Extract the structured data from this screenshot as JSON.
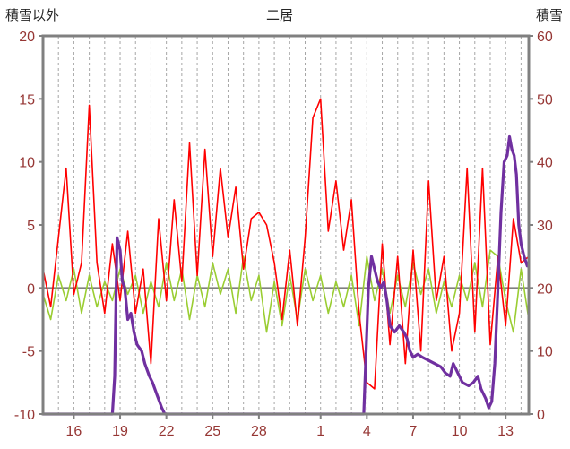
{
  "chart_data": {
    "type": "line",
    "title": "二居",
    "left_axis": {
      "title": "積雪以外",
      "min": -10,
      "max": 20,
      "tick_step": 5,
      "ticks": [
        20,
        15,
        10,
        5,
        0,
        -5,
        -10
      ]
    },
    "right_axis": {
      "title": "積雪",
      "min": 0,
      "max": 60,
      "tick_step": 10,
      "ticks": [
        60,
        50,
        40,
        30,
        20,
        10,
        0
      ]
    },
    "x_axis": {
      "min": 0,
      "max": 31.5,
      "gridline_step": 1,
      "tick_labels": [
        {
          "x": 2,
          "label": "16"
        },
        {
          "x": 5,
          "label": "19"
        },
        {
          "x": 8,
          "label": "22"
        },
        {
          "x": 11,
          "label": "25"
        },
        {
          "x": 14,
          "label": "28"
        },
        {
          "x": 18,
          "label": "1"
        },
        {
          "x": 21,
          "label": "4"
        },
        {
          "x": 24,
          "label": "7"
        },
        {
          "x": 27,
          "label": "10"
        },
        {
          "x": 30,
          "label": "13"
        }
      ]
    },
    "colors": {
      "tick_labels": "#963634",
      "grid": "#A6A6A6",
      "border": "#808080",
      "zero_line": "#808080"
    },
    "series": [
      {
        "id": "green",
        "axis": "left",
        "color": "#9ACD32",
        "width": 1.6,
        "x_start": 0,
        "x_step": 0.5,
        "values": [
          -0.5,
          -2.5,
          1,
          -1,
          1.5,
          -2,
          1,
          -1.5,
          0.5,
          -1,
          1.5,
          -0.5,
          1,
          -2,
          0.5,
          -1.5,
          2,
          -1,
          1.5,
          -2.5,
          1,
          -1.5,
          2,
          -0.5,
          1.5,
          -2,
          2.5,
          -1,
          1,
          -3.5,
          0.5,
          -3,
          1,
          -2.5,
          1.5,
          -1,
          1,
          -2,
          0.5,
          -1.5,
          1,
          -3,
          2.5,
          -1,
          1.5,
          -2,
          1,
          -1.5,
          2,
          -0.5,
          1.5,
          -2,
          0.5,
          -1.5,
          1,
          -1,
          2,
          -1.5,
          3,
          2.5,
          -1,
          -3.5,
          1.5,
          -2.5
        ]
      },
      {
        "id": "red",
        "axis": "left",
        "color": "#FF0000",
        "width": 1.6,
        "x_start": 0,
        "x_step": 0.5,
        "values": [
          1.5,
          -1.5,
          4,
          9.5,
          -0.5,
          2,
          14.5,
          2,
          -2,
          3.5,
          -1,
          4.5,
          -2,
          1.5,
          -6,
          5.5,
          -1,
          7,
          0.5,
          11.5,
          1,
          11,
          2.5,
          9.5,
          4,
          8,
          1.5,
          5.5,
          6,
          5,
          2,
          -2.5,
          3,
          -3,
          4,
          13.5,
          15,
          4.5,
          8.5,
          3,
          7,
          -2,
          -7.5,
          -8,
          3.5,
          -4.5,
          2.5,
          -6,
          3,
          -5,
          8.5,
          -1,
          2.5,
          -5,
          -2,
          9.5,
          -3.5,
          9.5,
          -4.5,
          2.5,
          -3,
          5.5,
          2,
          2.5
        ]
      },
      {
        "id": "purple",
        "axis": "right",
        "color": "#7030A0",
        "width": 3.2,
        "points": [
          [
            0,
            0
          ],
          [
            4.5,
            0
          ],
          [
            4.65,
            6
          ],
          [
            4.8,
            28
          ],
          [
            5.0,
            26
          ],
          [
            5.15,
            21
          ],
          [
            5.3,
            20
          ],
          [
            5.5,
            15
          ],
          [
            5.7,
            16
          ],
          [
            5.9,
            13
          ],
          [
            6.1,
            11
          ],
          [
            6.4,
            10
          ],
          [
            6.6,
            8
          ],
          [
            6.9,
            6
          ],
          [
            7.1,
            5
          ],
          [
            7.4,
            3
          ],
          [
            7.7,
            1
          ],
          [
            7.9,
            0
          ],
          [
            20.8,
            0
          ],
          [
            20.95,
            10
          ],
          [
            21.1,
            20
          ],
          [
            21.3,
            25
          ],
          [
            21.5,
            23
          ],
          [
            21.7,
            21
          ],
          [
            21.9,
            20
          ],
          [
            22.1,
            21
          ],
          [
            22.3,
            18
          ],
          [
            22.5,
            14
          ],
          [
            22.8,
            13
          ],
          [
            23.1,
            14
          ],
          [
            23.4,
            13
          ],
          [
            23.6,
            12
          ],
          [
            23.8,
            10
          ],
          [
            24.0,
            9
          ],
          [
            24.3,
            9.5
          ],
          [
            24.6,
            9
          ],
          [
            25.0,
            8.5
          ],
          [
            25.4,
            8
          ],
          [
            25.8,
            7.5
          ],
          [
            26.1,
            6.5
          ],
          [
            26.4,
            6
          ],
          [
            26.6,
            8
          ],
          [
            26.9,
            6.5
          ],
          [
            27.2,
            5
          ],
          [
            27.6,
            4.5
          ],
          [
            27.9,
            5
          ],
          [
            28.2,
            6
          ],
          [
            28.4,
            4
          ],
          [
            28.7,
            2.5
          ],
          [
            28.9,
            1
          ],
          [
            29.1,
            2
          ],
          [
            29.3,
            8
          ],
          [
            29.5,
            20
          ],
          [
            29.7,
            32
          ],
          [
            29.9,
            40
          ],
          [
            30.1,
            41
          ],
          [
            30.25,
            44
          ],
          [
            30.4,
            42
          ],
          [
            30.55,
            41
          ],
          [
            30.7,
            38
          ],
          [
            30.85,
            30
          ],
          [
            31.0,
            27
          ],
          [
            31.2,
            25
          ],
          [
            31.4,
            23.5
          ]
        ]
      }
    ]
  }
}
